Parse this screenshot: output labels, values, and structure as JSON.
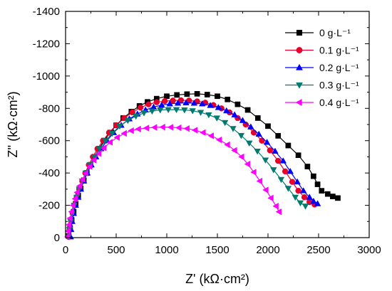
{
  "chart_data": {
    "type": "scatter",
    "xlabel": "Z' (kΩ·cm²)",
    "ylabel": "Z'' (kΩ·cm²)",
    "xlim": [
      0,
      3000
    ],
    "ylim": [
      0,
      -1400
    ],
    "xticks": [
      "0",
      "500",
      "1000",
      "1500",
      "2000",
      "2500",
      "3000"
    ],
    "yticks": [
      "0",
      "-200",
      "-400",
      "-600",
      "-800",
      "-1000",
      "-1200",
      "-1400"
    ],
    "legend_position": "top-right",
    "grid": false,
    "series": [
      {
        "name": "0 g·L⁻¹",
        "color": "#000000",
        "marker": "square",
        "points": [
          [
            30,
            -10
          ],
          [
            45,
            -60
          ],
          [
            60,
            -110
          ],
          [
            80,
            -160
          ],
          [
            100,
            -210
          ],
          [
            125,
            -260
          ],
          [
            150,
            -305
          ],
          [
            180,
            -355
          ],
          [
            210,
            -400
          ],
          [
            245,
            -450
          ],
          [
            285,
            -500
          ],
          [
            330,
            -550
          ],
          [
            380,
            -600
          ],
          [
            440,
            -650
          ],
          [
            500,
            -695
          ],
          [
            570,
            -740
          ],
          [
            650,
            -780
          ],
          [
            730,
            -815
          ],
          [
            810,
            -840
          ],
          [
            900,
            -860
          ],
          [
            1000,
            -875
          ],
          [
            1100,
            -883
          ],
          [
            1200,
            -888
          ],
          [
            1300,
            -890
          ],
          [
            1400,
            -885
          ],
          [
            1500,
            -875
          ],
          [
            1600,
            -855
          ],
          [
            1700,
            -825
          ],
          [
            1800,
            -790
          ],
          [
            1900,
            -740
          ],
          [
            2000,
            -690
          ],
          [
            2100,
            -630
          ],
          [
            2200,
            -570
          ],
          [
            2300,
            -510
          ],
          [
            2390,
            -440
          ],
          [
            2450,
            -380
          ],
          [
            2490,
            -330
          ],
          [
            2530,
            -290
          ],
          [
            2590,
            -270
          ],
          [
            2640,
            -255
          ],
          [
            2690,
            -245
          ]
        ]
      },
      {
        "name": "0.1 g·L⁻¹",
        "color": "#e8002d",
        "marker": "circle",
        "points": [
          [
            30,
            -5
          ],
          [
            40,
            -50
          ],
          [
            55,
            -100
          ],
          [
            70,
            -150
          ],
          [
            90,
            -200
          ],
          [
            110,
            -250
          ],
          [
            135,
            -300
          ],
          [
            165,
            -350
          ],
          [
            195,
            -400
          ],
          [
            230,
            -450
          ],
          [
            270,
            -500
          ],
          [
            315,
            -550
          ],
          [
            370,
            -600
          ],
          [
            430,
            -650
          ],
          [
            500,
            -695
          ],
          [
            580,
            -740
          ],
          [
            660,
            -775
          ],
          [
            740,
            -805
          ],
          [
            820,
            -825
          ],
          [
            900,
            -838
          ],
          [
            980,
            -845
          ],
          [
            1060,
            -848
          ],
          [
            1140,
            -850
          ],
          [
            1220,
            -848
          ],
          [
            1300,
            -843
          ],
          [
            1380,
            -835
          ],
          [
            1460,
            -820
          ],
          [
            1540,
            -800
          ],
          [
            1620,
            -775
          ],
          [
            1700,
            -740
          ],
          [
            1780,
            -700
          ],
          [
            1860,
            -650
          ],
          [
            1940,
            -600
          ],
          [
            2020,
            -540
          ],
          [
            2100,
            -475
          ],
          [
            2170,
            -410
          ],
          [
            2240,
            -345
          ],
          [
            2300,
            -290
          ],
          [
            2360,
            -250
          ],
          [
            2410,
            -220
          ],
          [
            2460,
            -205
          ]
        ]
      },
      {
        "name": "0.2 g·L⁻¹",
        "color": "#0000ff",
        "marker": "triangle-up",
        "points": [
          [
            50,
            -5
          ],
          [
            55,
            -50
          ],
          [
            65,
            -100
          ],
          [
            80,
            -150
          ],
          [
            100,
            -200
          ],
          [
            125,
            -250
          ],
          [
            150,
            -300
          ],
          [
            180,
            -350
          ],
          [
            215,
            -400
          ],
          [
            255,
            -450
          ],
          [
            300,
            -500
          ],
          [
            350,
            -550
          ],
          [
            410,
            -600
          ],
          [
            475,
            -650
          ],
          [
            550,
            -695
          ],
          [
            630,
            -735
          ],
          [
            710,
            -765
          ],
          [
            790,
            -790
          ],
          [
            870,
            -808
          ],
          [
            950,
            -820
          ],
          [
            1030,
            -828
          ],
          [
            1110,
            -832
          ],
          [
            1190,
            -834
          ],
          [
            1270,
            -832
          ],
          [
            1350,
            -828
          ],
          [
            1430,
            -818
          ],
          [
            1510,
            -805
          ],
          [
            1590,
            -785
          ],
          [
            1670,
            -760
          ],
          [
            1750,
            -725
          ],
          [
            1830,
            -685
          ],
          [
            1910,
            -640
          ],
          [
            1990,
            -590
          ],
          [
            2070,
            -535
          ],
          [
            2150,
            -475
          ],
          [
            2220,
            -410
          ],
          [
            2290,
            -345
          ],
          [
            2350,
            -290
          ],
          [
            2410,
            -250
          ],
          [
            2450,
            -225
          ],
          [
            2490,
            -210
          ]
        ]
      },
      {
        "name": "0.3 g·L⁻¹",
        "color": "#007a6e",
        "marker": "triangle-down",
        "points": [
          [
            30,
            -5
          ],
          [
            38,
            -50
          ],
          [
            50,
            -100
          ],
          [
            65,
            -150
          ],
          [
            85,
            -200
          ],
          [
            110,
            -250
          ],
          [
            135,
            -300
          ],
          [
            165,
            -350
          ],
          [
            200,
            -400
          ],
          [
            240,
            -450
          ],
          [
            285,
            -500
          ],
          [
            335,
            -550
          ],
          [
            395,
            -600
          ],
          [
            460,
            -645
          ],
          [
            535,
            -690
          ],
          [
            615,
            -725
          ],
          [
            695,
            -752
          ],
          [
            775,
            -772
          ],
          [
            855,
            -783
          ],
          [
            935,
            -790
          ],
          [
            1015,
            -792
          ],
          [
            1095,
            -792
          ],
          [
            1175,
            -790
          ],
          [
            1255,
            -785
          ],
          [
            1335,
            -775
          ],
          [
            1415,
            -760
          ],
          [
            1495,
            -740
          ],
          [
            1575,
            -712
          ],
          [
            1655,
            -675
          ],
          [
            1735,
            -632
          ],
          [
            1815,
            -585
          ],
          [
            1895,
            -535
          ],
          [
            1975,
            -480
          ],
          [
            2055,
            -420
          ],
          [
            2130,
            -360
          ],
          [
            2200,
            -305
          ],
          [
            2270,
            -250
          ],
          [
            2320,
            -215
          ],
          [
            2370,
            -195
          ]
        ]
      },
      {
        "name": "0.4 g·L⁻¹",
        "color": "#ff00ff",
        "marker": "triangle-left",
        "points": [
          [
            20,
            -5
          ],
          [
            25,
            -40
          ],
          [
            35,
            -80
          ],
          [
            45,
            -120
          ],
          [
            60,
            -160
          ],
          [
            75,
            -200
          ],
          [
            95,
            -240
          ],
          [
            115,
            -280
          ],
          [
            140,
            -320
          ],
          [
            170,
            -360
          ],
          [
            200,
            -400
          ],
          [
            240,
            -440
          ],
          [
            280,
            -480
          ],
          [
            330,
            -520
          ],
          [
            380,
            -555
          ],
          [
            440,
            -590
          ],
          [
            510,
            -620
          ],
          [
            580,
            -645
          ],
          [
            650,
            -662
          ],
          [
            720,
            -672
          ],
          [
            800,
            -678
          ],
          [
            880,
            -682
          ],
          [
            960,
            -684
          ],
          [
            1040,
            -683
          ],
          [
            1120,
            -680
          ],
          [
            1200,
            -675
          ],
          [
            1280,
            -665
          ],
          [
            1360,
            -650
          ],
          [
            1440,
            -630
          ],
          [
            1520,
            -605
          ],
          [
            1600,
            -575
          ],
          [
            1670,
            -540
          ],
          [
            1740,
            -500
          ],
          [
            1800,
            -455
          ],
          [
            1860,
            -405
          ],
          [
            1920,
            -350
          ],
          [
            1980,
            -295
          ],
          [
            2030,
            -245
          ],
          [
            2080,
            -195
          ],
          [
            2110,
            -160
          ]
        ]
      }
    ]
  }
}
